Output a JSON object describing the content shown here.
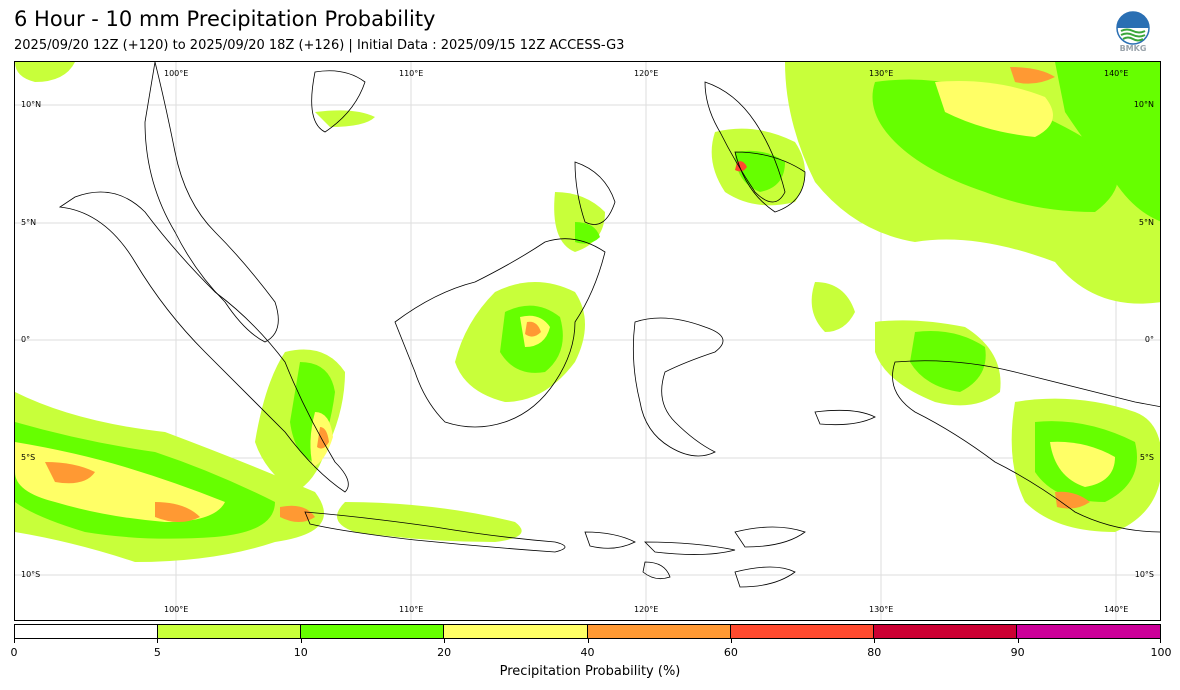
{
  "header": {
    "title": "6 Hour - 10 mm Precipitation Probability",
    "subtitle": "2025/09/20 12Z (+120) to 2025/09/20 18Z (+126) | Initial Data : 2025/09/15 12Z ACCESS-G3",
    "logo_text": "BMKG"
  },
  "map": {
    "lon_labels": [
      "100°E",
      "110°E",
      "120°E",
      "130°E",
      "140°E"
    ],
    "lat_labels": [
      "10°N",
      "5°N",
      "0°",
      "5°S",
      "10°S"
    ],
    "gridlines": true
  },
  "colorbar": {
    "label": "Precipitation Probability (%)",
    "ticks": [
      "0",
      "5",
      "10",
      "20",
      "40",
      "60",
      "80",
      "90",
      "100"
    ],
    "colors": [
      "#ffffff",
      "#c8ff3a",
      "#66ff00",
      "#ffff66",
      "#ff9933",
      "#ff4a2e",
      "#cc0033",
      "#cc0099"
    ]
  }
}
